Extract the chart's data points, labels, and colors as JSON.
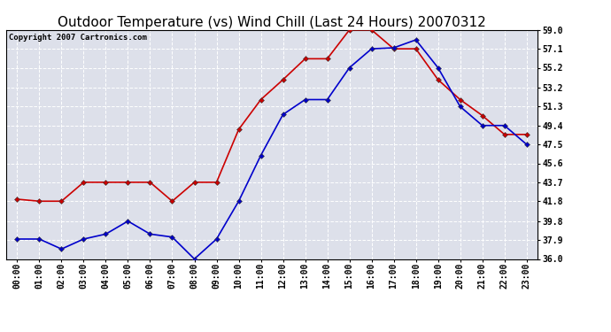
{
  "title": "Outdoor Temperature (vs) Wind Chill (Last 24 Hours) 20070312",
  "copyright": "Copyright 2007 Cartronics.com",
  "hours": [
    "00:00",
    "01:00",
    "02:00",
    "03:00",
    "04:00",
    "05:00",
    "06:00",
    "07:00",
    "08:00",
    "09:00",
    "10:00",
    "11:00",
    "12:00",
    "13:00",
    "14:00",
    "15:00",
    "16:00",
    "17:00",
    "18:00",
    "19:00",
    "20:00",
    "21:00",
    "22:00",
    "23:00"
  ],
  "temp": [
    42.0,
    41.8,
    41.8,
    43.7,
    43.7,
    43.7,
    43.7,
    41.8,
    43.7,
    43.7,
    49.0,
    52.0,
    54.0,
    56.1,
    56.1,
    59.0,
    59.0,
    57.1,
    57.1,
    54.0,
    52.0,
    50.4,
    48.5,
    48.5
  ],
  "windchill": [
    38.0,
    38.0,
    37.0,
    38.0,
    38.5,
    39.8,
    38.5,
    38.2,
    36.0,
    38.0,
    41.8,
    46.4,
    50.5,
    52.0,
    52.0,
    55.2,
    57.1,
    57.2,
    58.0,
    55.2,
    51.3,
    49.4,
    49.4,
    47.5
  ],
  "temp_color": "#cc0000",
  "windchill_color": "#0000cc",
  "bg_color": "#ffffff",
  "plot_bg_color": "#dde0ea",
  "grid_color": "#ffffff",
  "ylim_min": 36.0,
  "ylim_max": 59.0,
  "yticks": [
    36.0,
    37.9,
    39.8,
    41.8,
    43.7,
    45.6,
    47.5,
    49.4,
    51.3,
    53.2,
    55.2,
    57.1,
    59.0
  ],
  "title_fontsize": 11,
  "copyright_fontsize": 6.5,
  "tick_fontsize": 7,
  "marker": "D",
  "markersize": 3
}
